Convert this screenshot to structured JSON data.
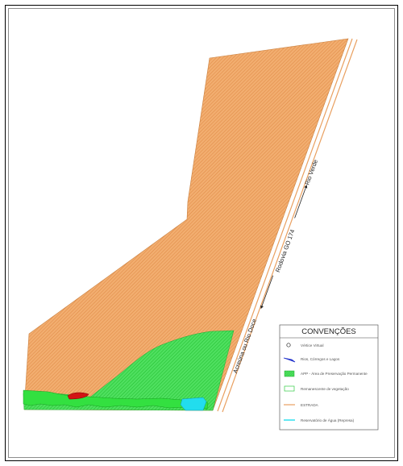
{
  "map": {
    "road": {
      "name": "Rodovia GO 174",
      "direction_north": "Rio Verde",
      "direction_south": "Acreúna ou Rio Doce"
    },
    "legend": {
      "title": "CONVENÇÕES",
      "items": [
        {
          "icon": "vertex-marker-icon",
          "label": "Vértice Virtual",
          "color": "#ffffff"
        },
        {
          "icon": "river-symbol-icon",
          "label": "Rios, Córregos e Lagos",
          "color": "#2233cc"
        },
        {
          "icon": "app-area-swatch-icon",
          "label": "APP - Área de Preservação Permanente",
          "color": "#33dd44"
        },
        {
          "icon": "remnant-vegetation-swatch-icon",
          "label": "Remanescente de vegetação",
          "color": "#55ee55"
        },
        {
          "icon": "road-line-icon",
          "label": "ESTRADA",
          "color": "#e9a060"
        },
        {
          "icon": "reservoir-line-icon",
          "label": "Reservatório de Água (Represa)",
          "color": "#22ddee"
        }
      ]
    },
    "colors": {
      "agricultural_area": "#f0a766",
      "app_area": "#33dd44",
      "water": "#22ddee",
      "red_feature": "#cc1111",
      "road": "#e9a060"
    }
  }
}
